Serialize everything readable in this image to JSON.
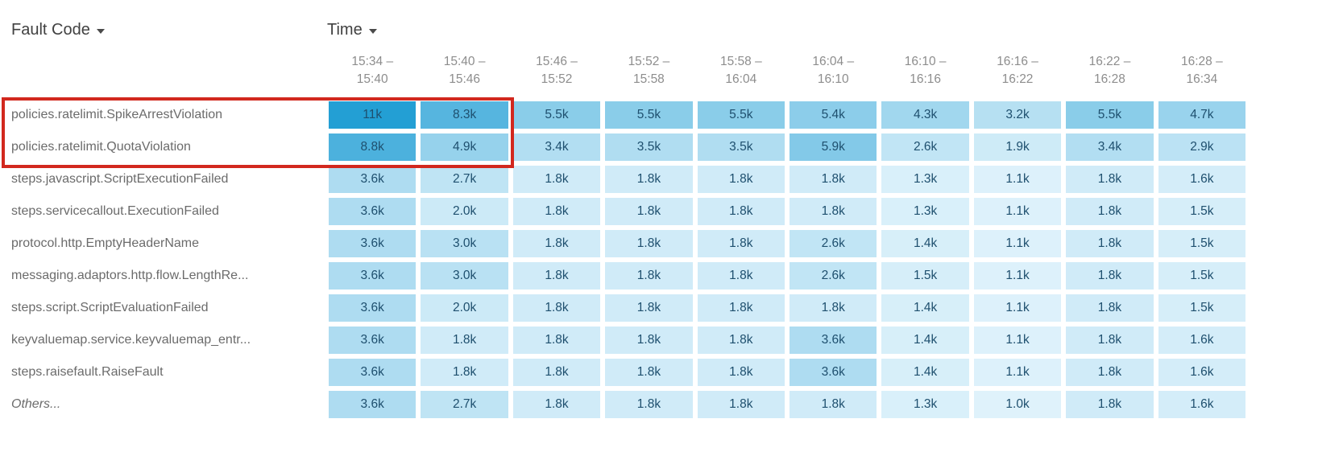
{
  "header": {
    "fault_code_label": "Fault Code",
    "time_label": "Time"
  },
  "highlight": {
    "color": "#d2281e",
    "rows_covered": [
      0,
      1
    ],
    "columns_covered": [
      0,
      1
    ]
  },
  "chart_data": {
    "type": "heatmap",
    "title": "",
    "x_dimension": "Time",
    "y_dimension": "Fault Code",
    "value_unit": "k",
    "legend": "none",
    "color_scale": {
      "min_value": 1.0,
      "max_value": 11,
      "min_color": "#dff2fb",
      "max_color": "#239fd4"
    },
    "cell_text_color": "#1e4f6e",
    "columns": [
      {
        "line1": "15:34 –",
        "line2": "15:40"
      },
      {
        "line1": "15:40 –",
        "line2": "15:46"
      },
      {
        "line1": "15:46 –",
        "line2": "15:52"
      },
      {
        "line1": "15:52 –",
        "line2": "15:58"
      },
      {
        "line1": "15:58 –",
        "line2": "16:04"
      },
      {
        "line1": "16:04 –",
        "line2": "16:10"
      },
      {
        "line1": "16:10 –",
        "line2": "16:16"
      },
      {
        "line1": "16:16 –",
        "line2": "16:22"
      },
      {
        "line1": "16:22 –",
        "line2": "16:28"
      },
      {
        "line1": "16:28 –",
        "line2": "16:34"
      }
    ],
    "rows": [
      {
        "label": "policies.ratelimit.SpikeArrestViolation",
        "italic": false,
        "display": [
          "11k",
          "8.3k",
          "5.5k",
          "5.5k",
          "5.5k",
          "5.4k",
          "4.3k",
          "3.2k",
          "5.5k",
          "4.7k"
        ],
        "values": [
          11,
          8.3,
          5.5,
          5.5,
          5.5,
          5.4,
          4.3,
          3.2,
          5.5,
          4.7
        ]
      },
      {
        "label": "policies.ratelimit.QuotaViolation",
        "italic": false,
        "display": [
          "8.8k",
          "4.9k",
          "3.4k",
          "3.5k",
          "3.5k",
          "5.9k",
          "2.6k",
          "1.9k",
          "3.4k",
          "2.9k"
        ],
        "values": [
          8.8,
          4.9,
          3.4,
          3.5,
          3.5,
          5.9,
          2.6,
          1.9,
          3.4,
          2.9
        ]
      },
      {
        "label": "steps.javascript.ScriptExecutionFailed",
        "italic": false,
        "display": [
          "3.6k",
          "2.7k",
          "1.8k",
          "1.8k",
          "1.8k",
          "1.8k",
          "1.3k",
          "1.1k",
          "1.8k",
          "1.6k"
        ],
        "values": [
          3.6,
          2.7,
          1.8,
          1.8,
          1.8,
          1.8,
          1.3,
          1.1,
          1.8,
          1.6
        ]
      },
      {
        "label": "steps.servicecallout.ExecutionFailed",
        "italic": false,
        "display": [
          "3.6k",
          "2.0k",
          "1.8k",
          "1.8k",
          "1.8k",
          "1.8k",
          "1.3k",
          "1.1k",
          "1.8k",
          "1.5k"
        ],
        "values": [
          3.6,
          2.0,
          1.8,
          1.8,
          1.8,
          1.8,
          1.3,
          1.1,
          1.8,
          1.5
        ]
      },
      {
        "label": "protocol.http.EmptyHeaderName",
        "italic": false,
        "display": [
          "3.6k",
          "3.0k",
          "1.8k",
          "1.8k",
          "1.8k",
          "2.6k",
          "1.4k",
          "1.1k",
          "1.8k",
          "1.5k"
        ],
        "values": [
          3.6,
          3.0,
          1.8,
          1.8,
          1.8,
          2.6,
          1.4,
          1.1,
          1.8,
          1.5
        ]
      },
      {
        "label": "messaging.adaptors.http.flow.LengthRe...",
        "italic": false,
        "display": [
          "3.6k",
          "3.0k",
          "1.8k",
          "1.8k",
          "1.8k",
          "2.6k",
          "1.5k",
          "1.1k",
          "1.8k",
          "1.5k"
        ],
        "values": [
          3.6,
          3.0,
          1.8,
          1.8,
          1.8,
          2.6,
          1.5,
          1.1,
          1.8,
          1.5
        ]
      },
      {
        "label": "steps.script.ScriptEvaluationFailed",
        "italic": false,
        "display": [
          "3.6k",
          "2.0k",
          "1.8k",
          "1.8k",
          "1.8k",
          "1.8k",
          "1.4k",
          "1.1k",
          "1.8k",
          "1.5k"
        ],
        "values": [
          3.6,
          2.0,
          1.8,
          1.8,
          1.8,
          1.8,
          1.4,
          1.1,
          1.8,
          1.5
        ]
      },
      {
        "label": "keyvaluemap.service.keyvaluemap_entr...",
        "italic": false,
        "display": [
          "3.6k",
          "1.8k",
          "1.8k",
          "1.8k",
          "1.8k",
          "3.6k",
          "1.4k",
          "1.1k",
          "1.8k",
          "1.6k"
        ],
        "values": [
          3.6,
          1.8,
          1.8,
          1.8,
          1.8,
          3.6,
          1.4,
          1.1,
          1.8,
          1.6
        ]
      },
      {
        "label": "steps.raisefault.RaiseFault",
        "italic": false,
        "display": [
          "3.6k",
          "1.8k",
          "1.8k",
          "1.8k",
          "1.8k",
          "3.6k",
          "1.4k",
          "1.1k",
          "1.8k",
          "1.6k"
        ],
        "values": [
          3.6,
          1.8,
          1.8,
          1.8,
          1.8,
          3.6,
          1.4,
          1.1,
          1.8,
          1.6
        ]
      },
      {
        "label": "Others...",
        "italic": true,
        "display": [
          "3.6k",
          "2.7k",
          "1.8k",
          "1.8k",
          "1.8k",
          "1.8k",
          "1.3k",
          "1.0k",
          "1.8k",
          "1.6k"
        ],
        "values": [
          3.6,
          2.7,
          1.8,
          1.8,
          1.8,
          1.8,
          1.3,
          1.0,
          1.8,
          1.6
        ]
      }
    ]
  }
}
